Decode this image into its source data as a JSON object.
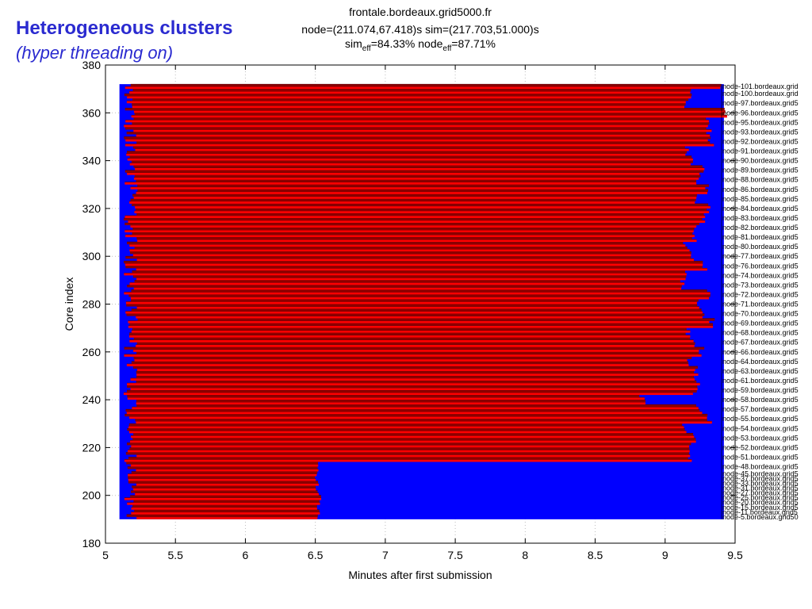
{
  "slide": {
    "title": "Heterogeneous clusters",
    "subtitle_paren_open": "(",
    "subtitle_italic": "hyper threading on",
    "subtitle_paren_close": ")"
  },
  "chart_data": {
    "type": "bar",
    "title_lines": [
      "frontale.bordeaux.grid5000.fr",
      "node=(211.074,67.418)s sim=(217.703,51.000)s"
    ],
    "eff_line": {
      "sim_prefix": "sim",
      "sim_sub": "eff",
      "sim_value": "=84.33% node",
      "node_sub": "eff",
      "node_value": "=87.71%"
    },
    "xlabel": "Minutes after first submission",
    "ylabel": "Core index",
    "xlim": [
      5,
      9.5
    ],
    "ylim": [
      180,
      380
    ],
    "xticks": [
      "5",
      "5.5",
      "6",
      "6.5",
      "7",
      "7.5",
      "8",
      "8.5",
      "9",
      "9.5"
    ],
    "yticks": [
      "180",
      "200",
      "220",
      "240",
      "260",
      "280",
      "300",
      "320",
      "340",
      "360",
      "380"
    ],
    "grid": true,
    "colors": {
      "idle": "#0000ff",
      "busy": "#ff0000",
      "busy_dark": "#8b0000",
      "frame": "#000000"
    },
    "series": [
      {
        "name": "node",
        "core_range": [
          190,
          372
        ],
        "start": 5.11,
        "end_max": 9.42
      }
    ],
    "node_labels": [
      {
        "label": "node-101.bordeaux.grid",
        "core": 370,
        "end": 9.38
      },
      {
        "label": "node-100.bordeaux.grid",
        "core": 366,
        "end": 9.17
      },
      {
        "label": "node-97.bordeaux.grid5",
        "core": 362,
        "end": 9.16
      },
      {
        "label": "node-96.bordeaux.grid5",
        "core": 358,
        "end": 9.42
      },
      {
        "label": "node-95.bordeaux.grid5",
        "core": 354,
        "end": 9.3
      },
      {
        "label": "node-93.bordeaux.grid5",
        "core": 350,
        "end": 9.31
      },
      {
        "label": "node-92.bordeaux.grid5",
        "core": 346,
        "end": 9.33
      },
      {
        "label": "node-91.bordeaux.grid5",
        "core": 342,
        "end": 9.15
      },
      {
        "label": "node-90.bordeaux.grid5",
        "core": 338,
        "end": 9.18
      },
      {
        "label": "node-89.bordeaux.grid5",
        "core": 334,
        "end": 9.26
      },
      {
        "label": "node-88.bordeaux.grid5",
        "core": 330,
        "end": 9.23
      },
      {
        "label": "node-86.bordeaux.grid5",
        "core": 326,
        "end": 9.29
      },
      {
        "label": "node-85.bordeaux.grid5",
        "core": 322,
        "end": 9.22
      },
      {
        "label": "node-84.bordeaux.grid5",
        "core": 318,
        "end": 9.3
      },
      {
        "label": "node-83.bordeaux.grid5",
        "core": 314,
        "end": 9.29
      },
      {
        "label": "node-82.bordeaux.grid5",
        "core": 310,
        "end": 9.22
      },
      {
        "label": "node-81.bordeaux.grid5",
        "core": 306,
        "end": 9.21
      },
      {
        "label": "node-80.bordeaux.grid5",
        "core": 302,
        "end": 9.15
      },
      {
        "label": "node-77.bordeaux.grid5",
        "core": 298,
        "end": 9.2
      },
      {
        "label": "node-76.bordeaux.grid5",
        "core": 294,
        "end": 9.29
      },
      {
        "label": "node-74.bordeaux.grid5",
        "core": 290,
        "end": 9.13
      },
      {
        "label": "node-73.bordeaux.grid5",
        "core": 286,
        "end": 9.13
      },
      {
        "label": "node-72.bordeaux.grid5",
        "core": 282,
        "end": 9.31
      },
      {
        "label": "node-71.bordeaux.grid5",
        "core": 278,
        "end": 9.23
      },
      {
        "label": "node-70.bordeaux.grid5",
        "core": 274,
        "end": 9.26
      },
      {
        "label": "node-69.bordeaux.grid5",
        "core": 270,
        "end": 9.33
      },
      {
        "label": "node-68.bordeaux.grid5",
        "core": 266,
        "end": 9.16
      },
      {
        "label": "node-67.bordeaux.grid5",
        "core": 262,
        "end": 9.19
      },
      {
        "label": "node-66.bordeaux.grid5",
        "core": 258,
        "end": 9.26
      },
      {
        "label": "node-64.bordeaux.grid5",
        "core": 254,
        "end": 9.18
      },
      {
        "label": "node-63.bordeaux.grid5",
        "core": 250,
        "end": 9.23
      },
      {
        "label": "node-61.bordeaux.grid5",
        "core": 246,
        "end": 9.23
      },
      {
        "label": "node-59.bordeaux.grid5",
        "core": 242,
        "end": 9.22
      },
      {
        "label": "node-58.bordeaux.grid5",
        "core": 238,
        "end": 8.84
      },
      {
        "label": "node-57.bordeaux.grid5",
        "core": 234,
        "end": 9.24
      },
      {
        "label": "node-55.bordeaux.grid5",
        "core": 230,
        "end": 9.32
      },
      {
        "label": "node-54.bordeaux.grid5",
        "core": 226,
        "end": 9.13
      },
      {
        "label": "node-53.bordeaux.grid5",
        "core": 222,
        "end": 9.2
      },
      {
        "label": "node-52.bordeaux.grid5",
        "core": 218,
        "end": 9.18
      },
      {
        "label": "node-51.bordeaux.grid5",
        "core": 214,
        "end": 9.17
      },
      {
        "label": "node-48.bordeaux.grid5",
        "core": 210,
        "end": 6.52
      },
      {
        "label": "node-45.bordeaux.grid5",
        "core": 208,
        "end": 6.51
      },
      {
        "label": "node-37.bordeaux.grid5",
        "core": 206,
        "end": 6.5
      },
      {
        "label": "node-33.bordeaux.grid5",
        "core": 204,
        "end": 6.52
      },
      {
        "label": "node-31.bordeaux.grid5",
        "core": 202,
        "end": 6.5
      },
      {
        "label": "node-27.bordeaux.grid5",
        "core": 200,
        "end": 6.52
      },
      {
        "label": "node-25.bordeaux.grid5",
        "core": 198,
        "end": 6.54
      },
      {
        "label": "node-20.bordeaux.grid5",
        "core": 196,
        "end": 6.53
      },
      {
        "label": "node-15.bordeaux.grid5",
        "core": 194,
        "end": 6.51
      },
      {
        "label": "node-11.bordeaux.grid5",
        "core": 192,
        "end": 6.53
      },
      {
        "label": "node-5.bordeaux.grid50",
        "core": 190,
        "end": 6.52
      }
    ]
  }
}
